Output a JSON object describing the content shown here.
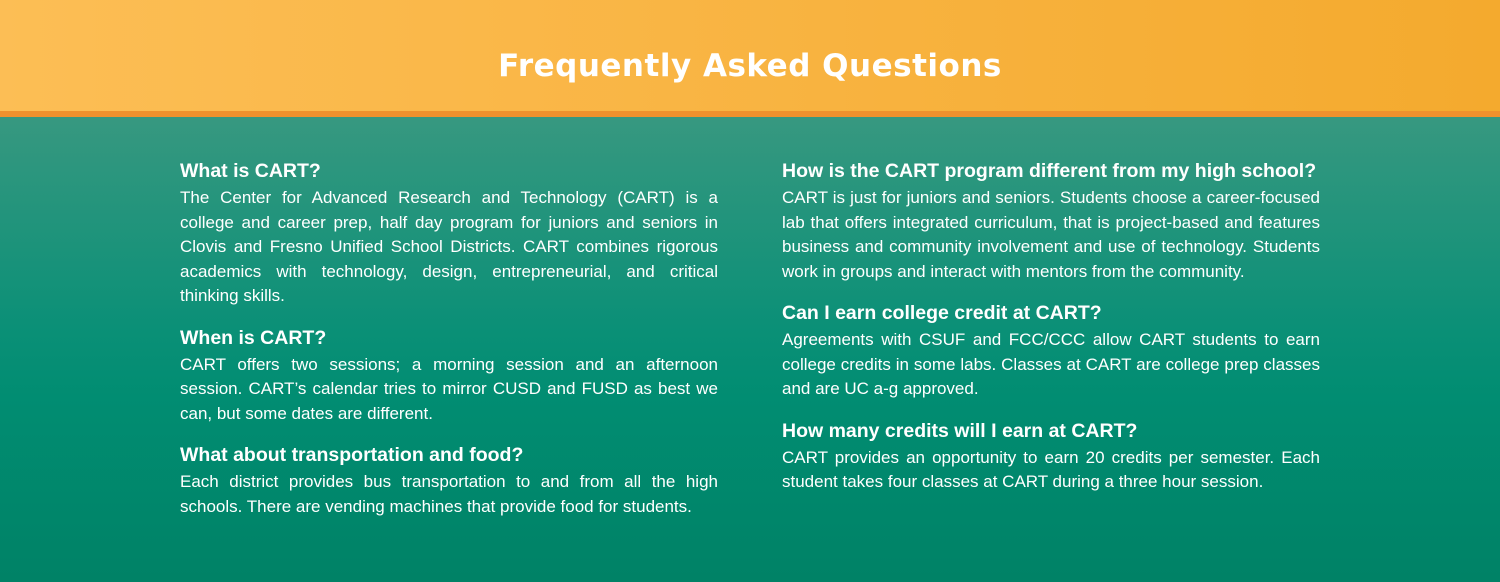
{
  "title": "Frequently Asked Questions",
  "colors": {
    "header_gradient_left": "#FCBE55",
    "header_gradient_right": "#F4AA2E",
    "header_accent_strip": "#EF912D",
    "content_gradient_top": "#379880",
    "content_gradient_bottom": "#008266",
    "text": "#FFFFFF"
  },
  "columns": [
    {
      "items": [
        {
          "question": "What is CART?",
          "answer": "The Center for Advanced Research and Technology (CART) is a college and career prep, half day program for juniors and seniors in Clovis and Fresno Unified School Districts. CART combines rigorous academics with technology, design, entrepreneurial, and critical thinking skills."
        },
        {
          "question": "When is CART?",
          "answer": "CART offers two sessions; a morning session and an afternoon session. CART’s calendar tries to mirror CUSD and FUSD as best we can, but some dates are different."
        },
        {
          "question": "What about transportation and food?",
          "answer": "Each district provides bus transportation to and from all the high schools. There are vending machines that provide food for students."
        }
      ]
    },
    {
      "items": [
        {
          "question": "How is the CART program different from my high school?",
          "answer": "CART is just for juniors and seniors. Students choose a career-focused lab that offers integrated curriculum, that is project-based and features business and community involvement and use of technology. Students work in groups and interact with mentors from the community."
        },
        {
          "question": "Can I earn college credit at CART?",
          "answer": "Agreements with CSUF and FCC/CCC allow CART students to earn college credits in some labs. Classes at CART are college prep classes and are UC a-g approved."
        },
        {
          "question": "How many credits will I earn at CART?",
          "answer": "CART provides an opportunity to earn 20 credits per semester. Each student takes four classes at CART during a three hour session."
        }
      ]
    }
  ]
}
